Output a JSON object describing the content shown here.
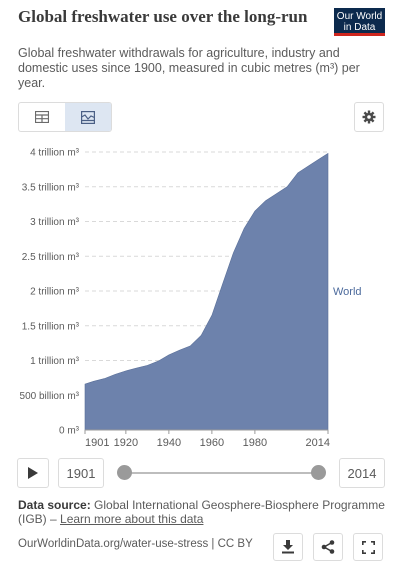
{
  "header": {
    "title": "Global freshwater use over the long-run",
    "subtitle": "Global freshwater withdrawals for agriculture, industry and domestic uses since 1900, measured in cubic metres (m³) per year.",
    "logo_line1": "Our World",
    "logo_line2": "in Data"
  },
  "toolbar": {
    "table_icon": "table-icon",
    "chart_icon": "area-chart-icon",
    "settings_icon": "gear-icon"
  },
  "chart_data": {
    "type": "area",
    "series": [
      {
        "name": "World",
        "color": "#6d82ac",
        "x": [
          1901,
          1905,
          1910,
          1915,
          1920,
          1925,
          1930,
          1935,
          1940,
          1945,
          1950,
          1955,
          1960,
          1965,
          1970,
          1975,
          1980,
          1985,
          1990,
          1995,
          2000,
          2005,
          2010,
          2014
        ],
        "values": [
          660000000000.0,
          700000000000.0,
          740000000000.0,
          800000000000.0,
          850000000000.0,
          890000000000.0,
          930000000000.0,
          990000000000.0,
          1080000000000.0,
          1150000000000.0,
          1210000000000.0,
          1360000000000.0,
          1650000000000.0,
          2100000000000.0,
          2550000000000.0,
          2900000000000.0,
          3150000000000.0,
          3300000000000.0,
          3400000000000.0,
          3500000000000.0,
          3700000000000.0,
          3800000000000.0,
          3900000000000.0,
          3980000000000.0
        ]
      }
    ],
    "y_tick_labels": [
      "0 m³",
      "500 billion m³",
      "1 trillion m³",
      "1.5 trillion m³",
      "2 trillion m³",
      "2.5 trillion m³",
      "3 trillion m³",
      "3.5 trillion m³",
      "4 trillion m³"
    ],
    "y_tick_values": [
      0,
      500000000000.0,
      1000000000000.0,
      1500000000000.0,
      2000000000000.0,
      2500000000000.0,
      3000000000000.0,
      3500000000000.0,
      4000000000000.0
    ],
    "x_tick_labels": [
      "1901",
      "1920",
      "1940",
      "1960",
      "1980",
      "2014"
    ],
    "x_tick_values": [
      1901,
      1920,
      1940,
      1960,
      1980,
      2014
    ],
    "xlim": [
      1901,
      2014
    ],
    "ylim": [
      0,
      4000000000000.0
    ],
    "grid": true
  },
  "timeline": {
    "start_year": "1901",
    "end_year": "2014"
  },
  "footer": {
    "source_label": "Data source:",
    "source_text": "Global International Geosphere-Biosphere Programme (IGB) – ",
    "source_link": "Learn more about this data",
    "url_text": "OurWorldinData.org/water-use-stress | CC BY",
    "download_icon": "download-icon",
    "share_icon": "share-icon",
    "fullscreen_icon": "fullscreen-icon"
  }
}
